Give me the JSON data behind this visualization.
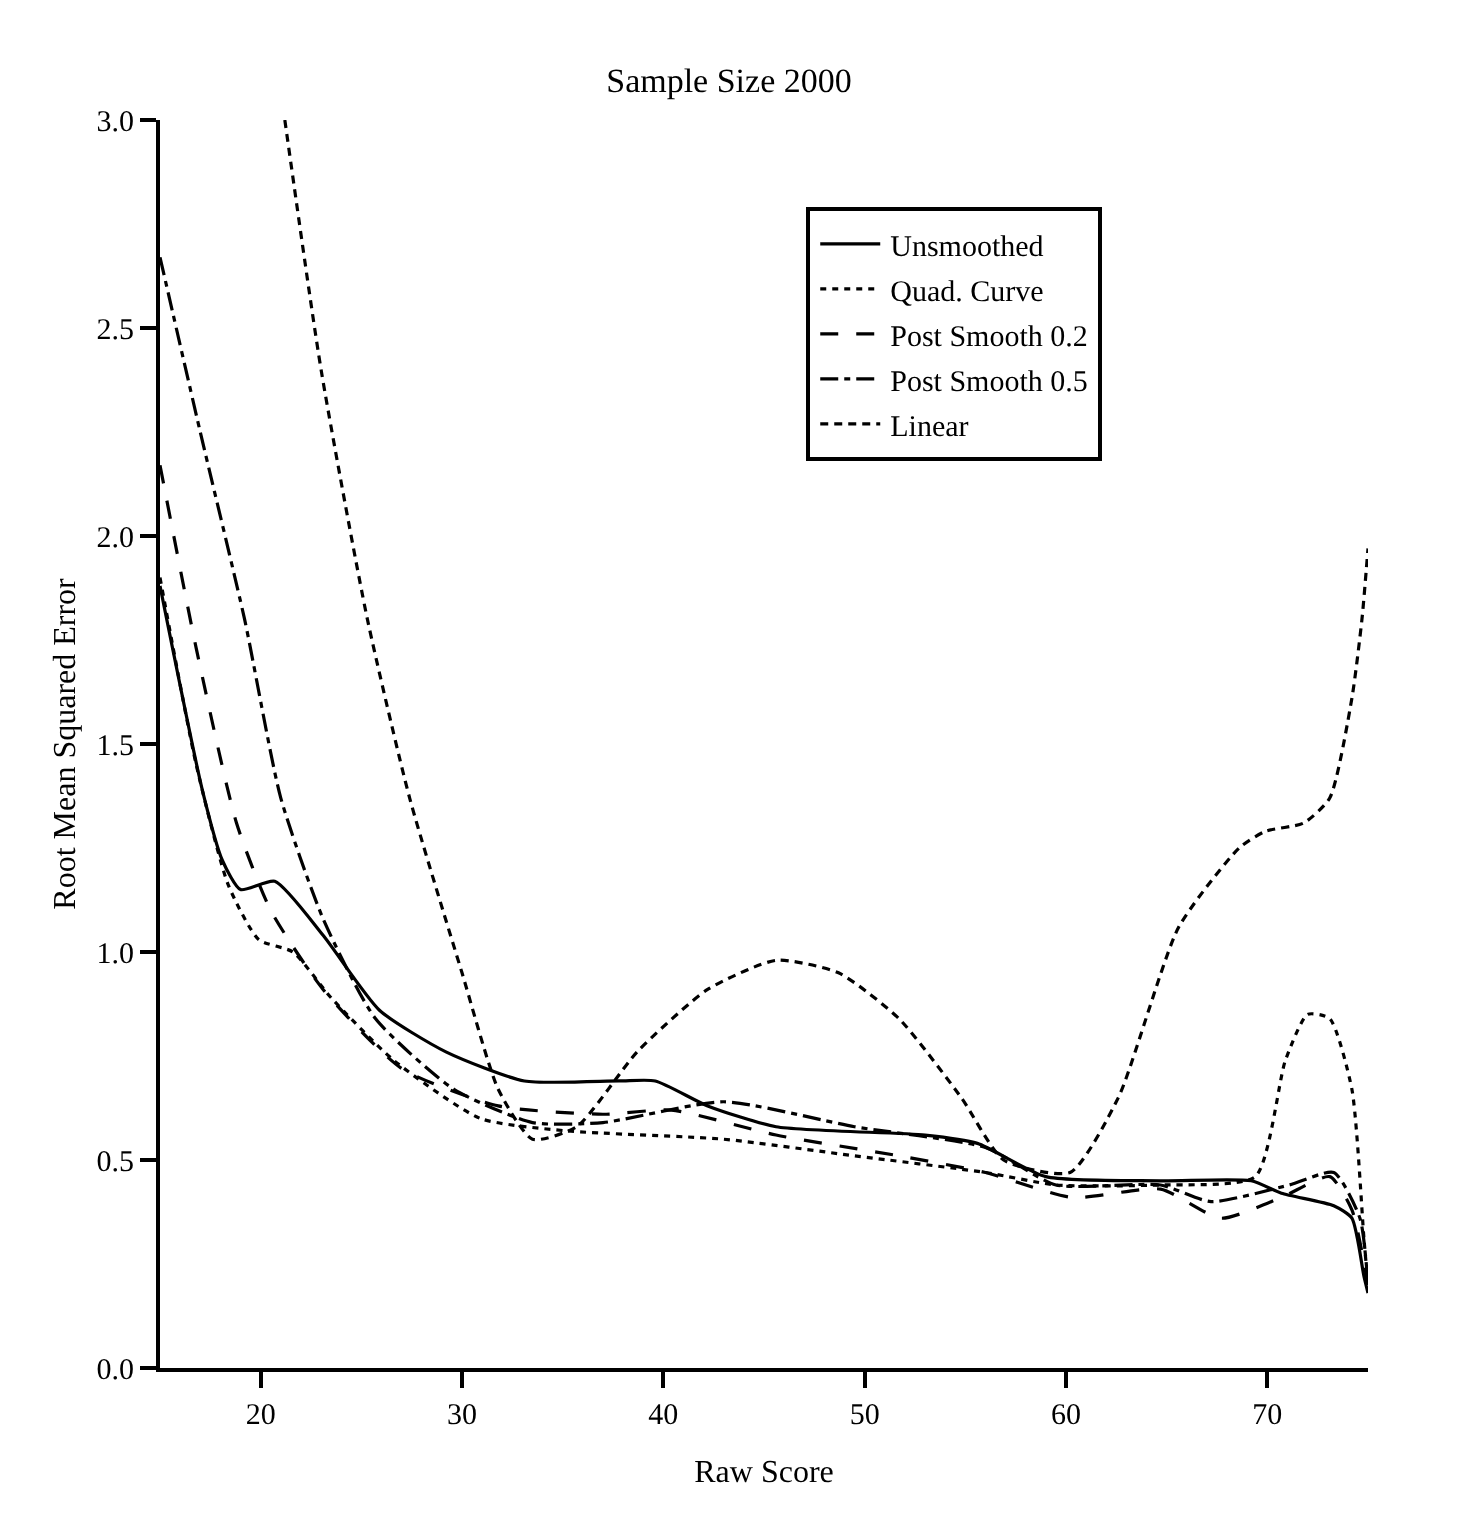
{
  "chart_data": {
    "type": "line",
    "title": "Sample Size 2000",
    "xlabel": "Raw Score",
    "ylabel": "Root Mean Squared Error",
    "xlim": [
      15,
      75
    ],
    "xticks": [
      20,
      30,
      40,
      50,
      60,
      70
    ],
    "ylim": [
      0,
      3.0
    ],
    "yticks": [
      {
        "value": 0,
        "label": "0.0"
      },
      {
        "value": 0.5,
        "label": "0.5"
      },
      {
        "value": 1.0,
        "label": "1.0"
      },
      {
        "value": 1.5,
        "label": "1.5"
      },
      {
        "value": 2.0,
        "label": "2.0"
      },
      {
        "value": 2.5,
        "label": "2.5"
      },
      {
        "value": 3.0,
        "label": "3.0"
      }
    ],
    "legend": "top right",
    "marker": "none",
    "series": [
      {
        "name": "Unsmoothed",
        "color": "#000000",
        "line_style": "solid",
        "x": [
          15,
          17.1,
          18.1,
          19.0,
          20.7,
          23.1,
          25.9,
          29.2,
          33.1,
          37.8,
          39.6,
          42.2,
          45.6,
          53,
          55.6,
          59,
          64.7,
          69.2,
          70.7,
          73.3,
          74.2,
          74.8,
          75
        ],
        "values": [
          1.88,
          1.39,
          1.22,
          1.15,
          1.17,
          1.04,
          0.86,
          0.76,
          0.69,
          0.69,
          0.69,
          0.63,
          0.58,
          0.56,
          0.54,
          0.46,
          0.45,
          0.45,
          0.42,
          0.39,
          0.36,
          0.22,
          0.18
        ]
      },
      {
        "name": "Quad. Curve",
        "color": "#000000",
        "line_style": "dotted",
        "x": [
          15,
          16.8,
          18.4,
          19.9,
          21.6,
          23.5,
          26.6,
          30.9,
          35.2,
          43,
          49.5,
          56,
          59.5,
          64.7,
          69.4,
          70.9,
          72,
          73.1,
          74.2,
          74.8,
          75
        ],
        "values": [
          1.9,
          1.45,
          1.16,
          1.03,
          1.0,
          0.89,
          0.74,
          0.6,
          0.57,
          0.55,
          0.51,
          0.47,
          0.44,
          0.44,
          0.46,
          0.74,
          0.85,
          0.84,
          0.67,
          0.31,
          0.2
        ]
      },
      {
        "name": "Post Smooth 0.2",
        "color": "#000000",
        "line_style": "dashed",
        "x": [
          15,
          16.8,
          18.8,
          20.5,
          23.1,
          27,
          31.8,
          37,
          40.4,
          45.6,
          51.7,
          56,
          60.3,
          64.7,
          67.7,
          70.7,
          73.1,
          74.2,
          75
        ],
        "values": [
          2.17,
          1.73,
          1.31,
          1.1,
          0.91,
          0.72,
          0.63,
          0.61,
          0.62,
          0.56,
          0.51,
          0.47,
          0.41,
          0.43,
          0.36,
          0.41,
          0.46,
          0.38,
          0.2
        ]
      },
      {
        "name": "Post Smooth 0.5",
        "color": "#000000",
        "line_style": "dashdot",
        "x": [
          15,
          17,
          19.2,
          21,
          23.1,
          25.7,
          29.6,
          33.5,
          37,
          43,
          49.5,
          56,
          59.5,
          64.7,
          67.2,
          71.1,
          73.3,
          74.6,
          75
        ],
        "values": [
          2.67,
          2.25,
          1.8,
          1.37,
          1.08,
          0.84,
          0.67,
          0.59,
          0.59,
          0.64,
          0.58,
          0.53,
          0.44,
          0.44,
          0.4,
          0.44,
          0.47,
          0.36,
          0.2
        ]
      },
      {
        "name": "Linear",
        "color": "#000000",
        "line_style": "shortdash",
        "x": [
          21.2,
          23,
          25.3,
          27.4,
          30,
          31.8,
          33.5,
          35.7,
          38.7,
          42.2,
          45.6,
          48.7,
          51.7,
          54.8,
          56.9,
          60.2,
          62.6,
          65.6,
          68.6,
          69.9,
          71.8,
          73.1,
          74.2,
          74.7,
          75
        ],
        "values": [
          3.0,
          2.4,
          1.8,
          1.37,
          0.95,
          0.67,
          0.55,
          0.58,
          0.76,
          0.91,
          0.98,
          0.95,
          0.84,
          0.65,
          0.5,
          0.47,
          0.65,
          1.06,
          1.25,
          1.29,
          1.31,
          1.37,
          1.61,
          1.8,
          1.97
        ]
      }
    ]
  }
}
